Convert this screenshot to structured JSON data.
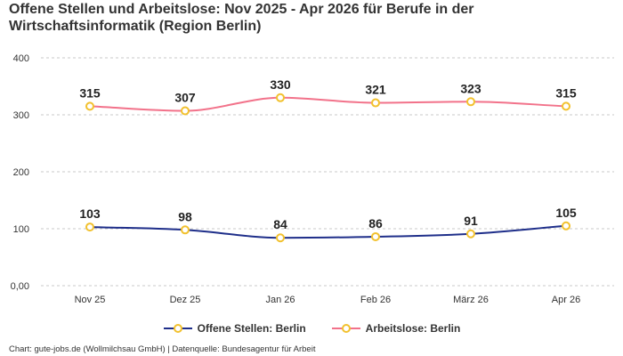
{
  "chart_data": {
    "type": "line",
    "title": "Offene Stellen und Arbeitslose: Nov 2025 - Apr 2026 für Berufe in der Wirtschaftsinformatik (Region Berlin)",
    "categories": [
      "Nov 25",
      "Dez 25",
      "Jan 26",
      "Feb 26",
      "März 26",
      "Apr 26"
    ],
    "series": [
      {
        "name": "Offene Stellen: Berlin",
        "values": [
          103,
          98,
          84,
          86,
          91,
          105
        ],
        "color": "#1f2f8a",
        "marker_color": "#f2c12e"
      },
      {
        "name": "Arbeitslose: Berlin",
        "values": [
          315,
          307,
          330,
          321,
          323,
          315
        ],
        "color": "#f2728a",
        "marker_color": "#f2c12e"
      }
    ],
    "ylim": [
      0,
      400
    ],
    "yticks": [
      0,
      100,
      200,
      300,
      400
    ],
    "ytick_labels": [
      "0,00",
      "100",
      "200",
      "300",
      "400"
    ],
    "grid": true,
    "legend_position": "bottom",
    "data_labels": true
  },
  "credits": "Chart: gute-jobs.de (Wollmilchsau GmbH) | Datenquelle: Bundesagentur für Arbeit"
}
